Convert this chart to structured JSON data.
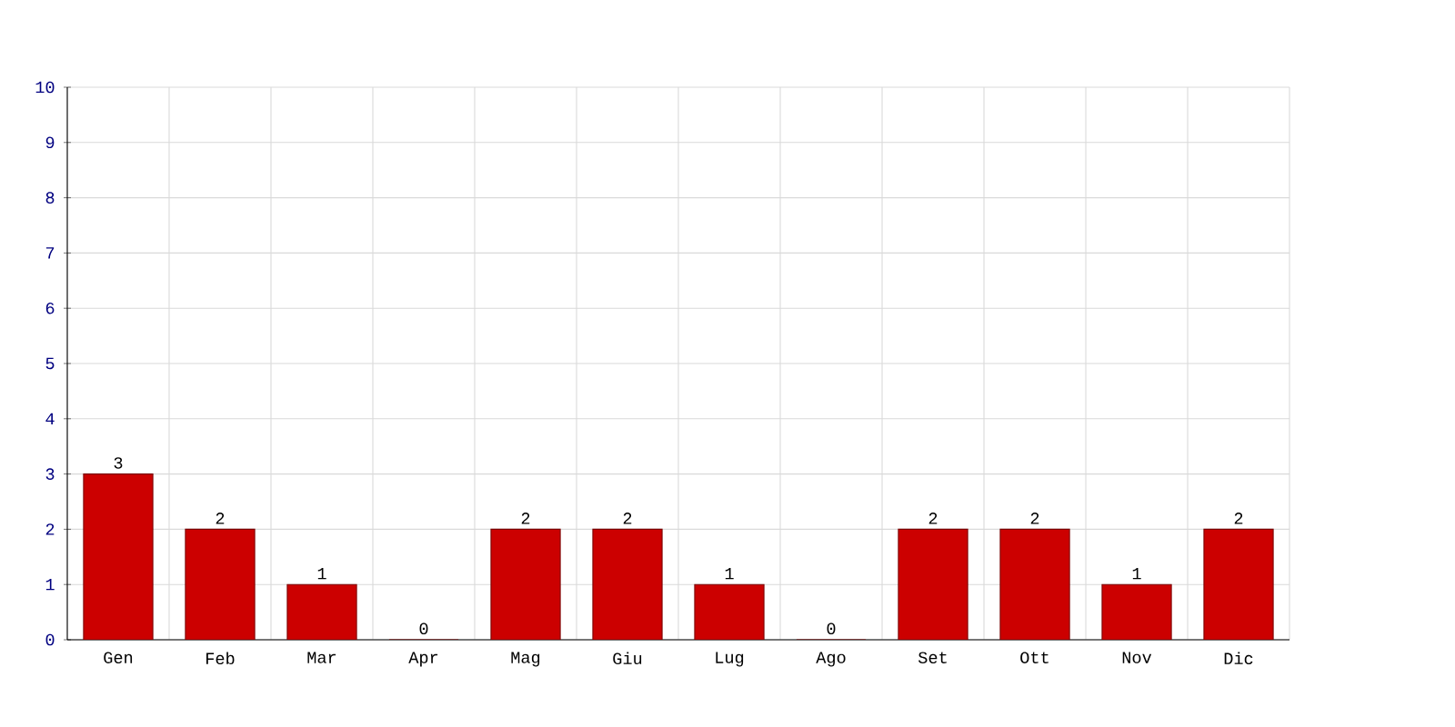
{
  "chart_data": {
    "type": "bar",
    "categories": [
      "Gen",
      "Feb",
      "Mar",
      "Apr",
      "Mag",
      "Giu",
      "Lug",
      "Ago",
      "Set",
      "Ott",
      "Nov",
      "Dic"
    ],
    "values": [
      3,
      2,
      1,
      0,
      2,
      2,
      1,
      0,
      2,
      2,
      1,
      2
    ],
    "color": "#cc0000",
    "ylim": [
      0,
      10
    ],
    "yticks": [
      0,
      1,
      2,
      3,
      4,
      5,
      6,
      7,
      8,
      9,
      10
    ],
    "grid": true,
    "data_labels": true
  }
}
